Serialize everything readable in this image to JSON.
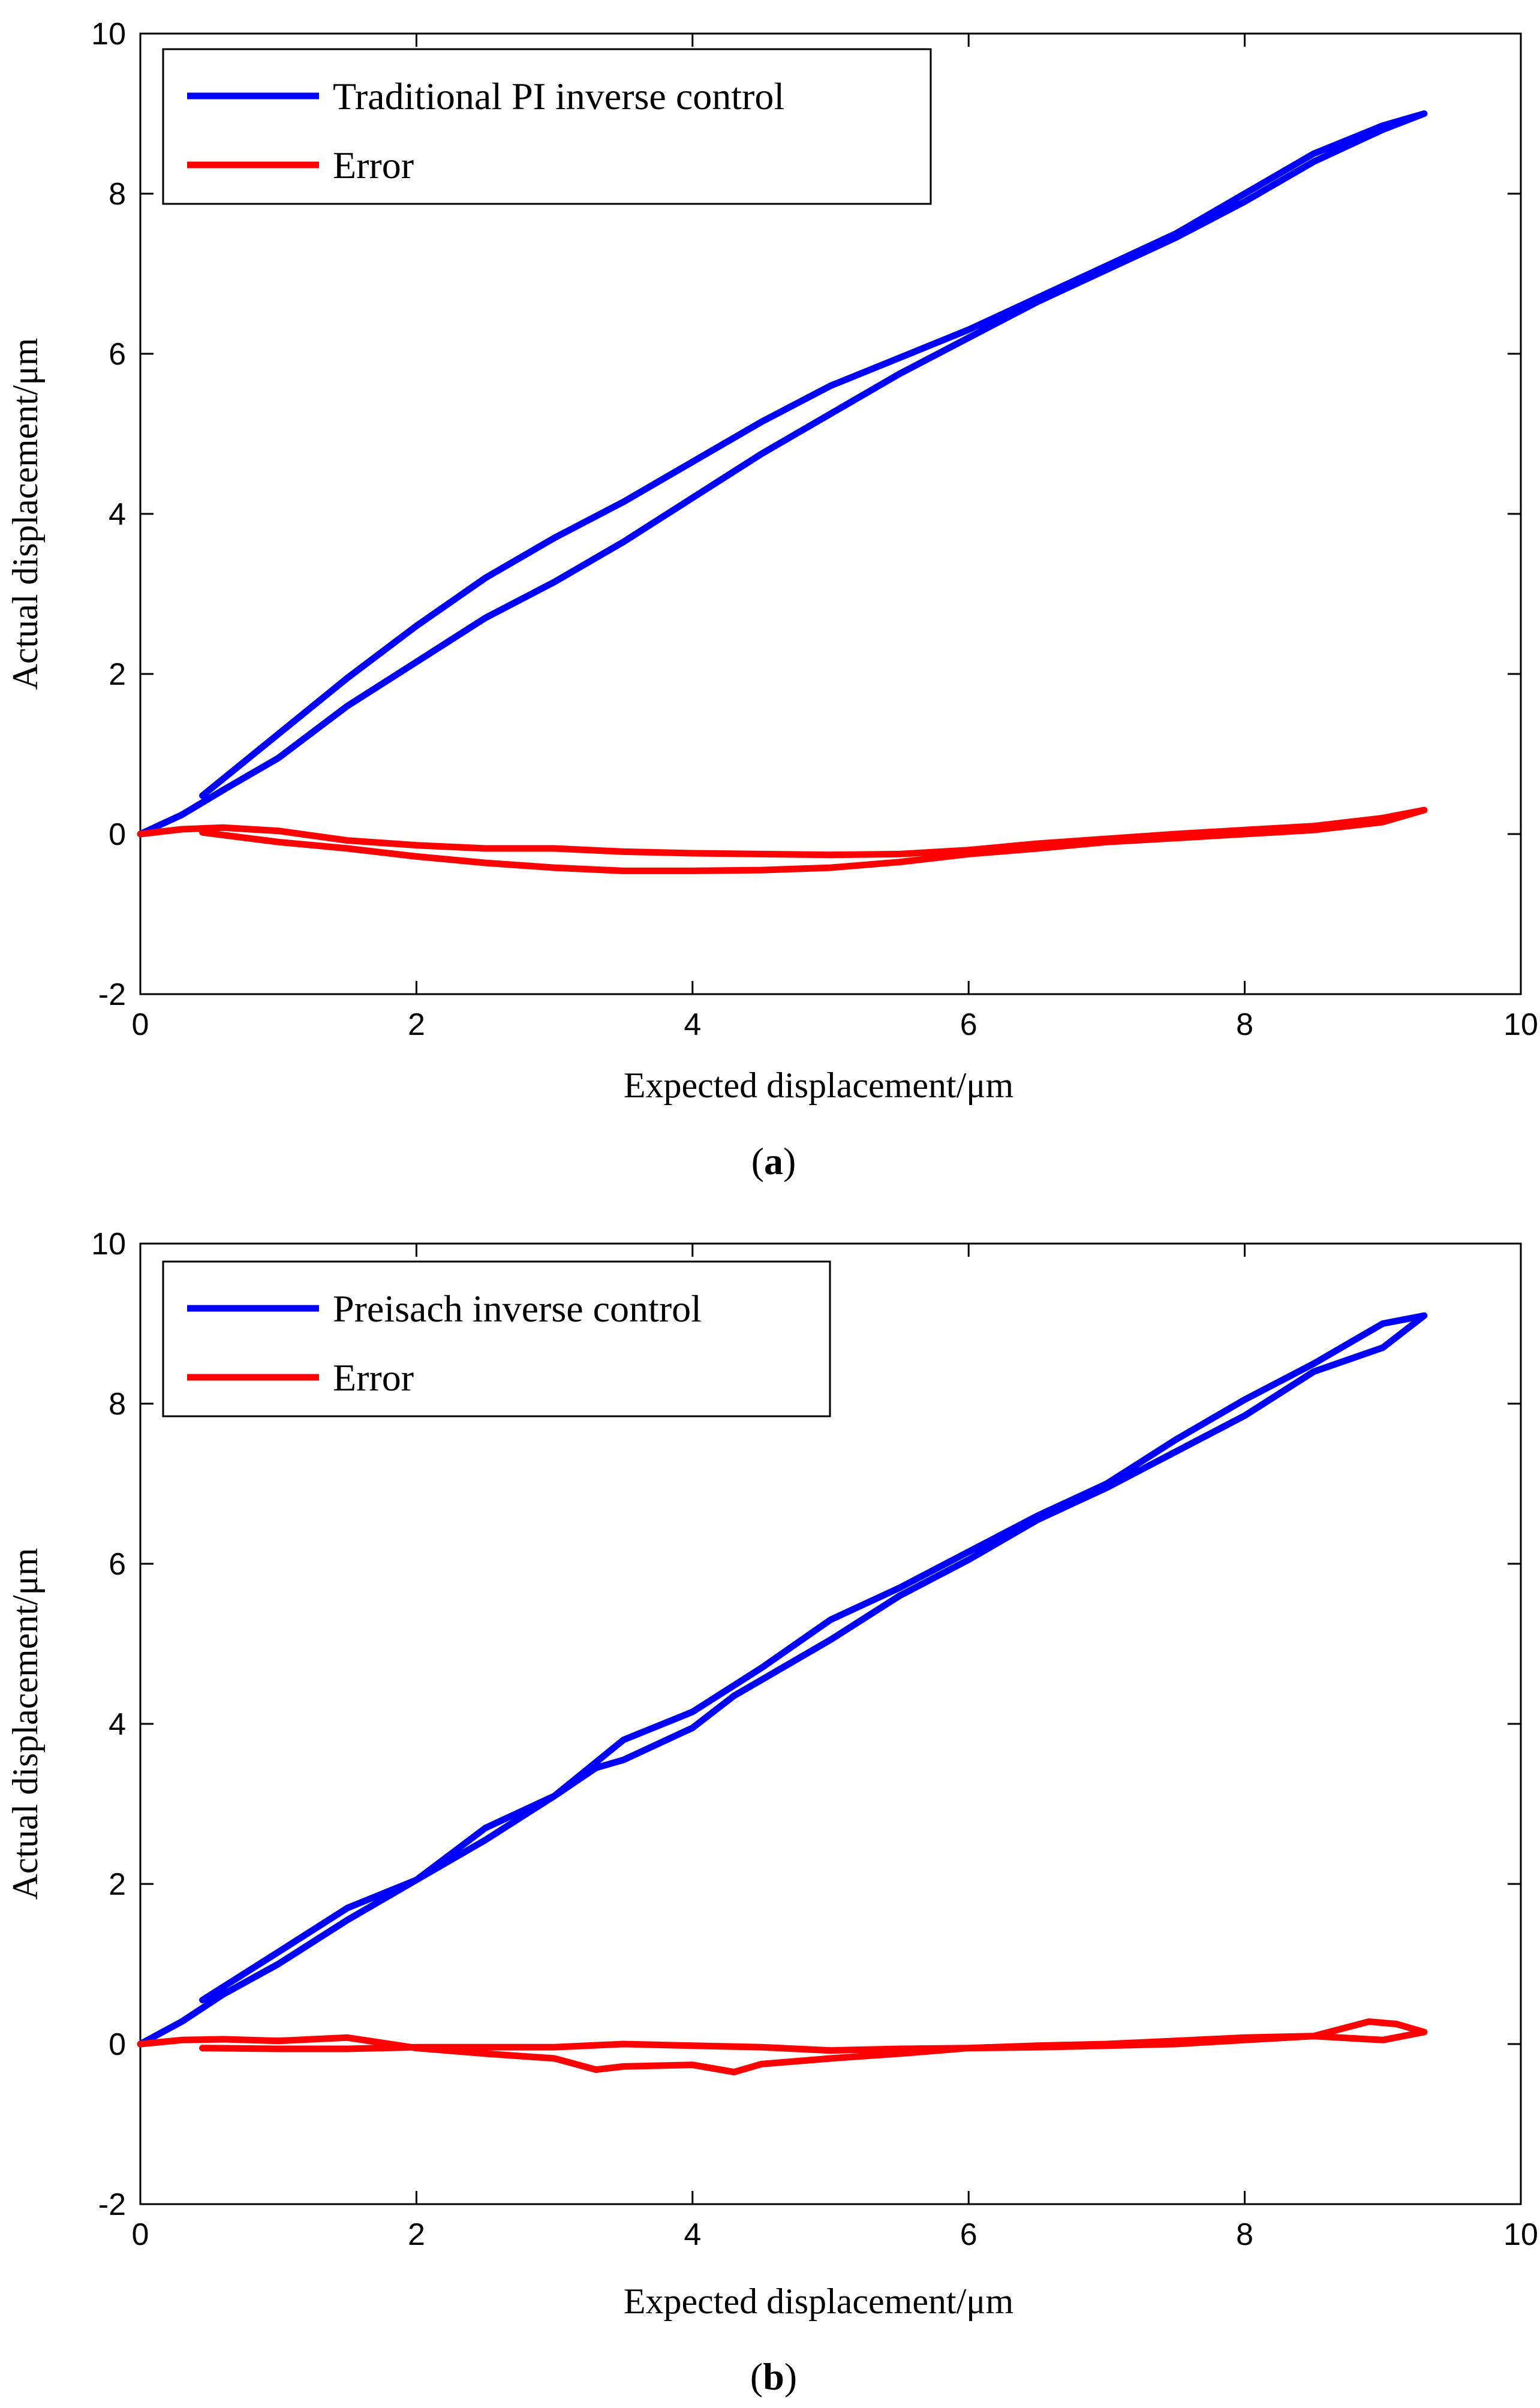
{
  "chart_data": [
    {
      "type": "line",
      "panel_id": "a",
      "caption": "a",
      "xlabel": "Expected displacement/μm",
      "ylabel": "Actual displacement/μm",
      "xlim": [
        0,
        10
      ],
      "ylim": [
        -2,
        10
      ],
      "xticks": [
        0,
        2,
        4,
        6,
        8,
        10
      ],
      "yticks": [
        -2,
        0,
        2,
        4,
        6,
        8,
        10
      ],
      "xtick_labels": [
        "0",
        "2",
        "4",
        "6",
        "8",
        "10"
      ],
      "ytick_labels": [
        "-2",
        "0",
        "2",
        "4",
        "6",
        "8",
        "10"
      ],
      "grid": false,
      "legend_position": "top-left",
      "series": [
        {
          "name": "Traditional PI inverse control",
          "color": "#0000ff",
          "x": [
            0.0,
            0.3,
            0.6,
            1.0,
            1.5,
            2.0,
            2.5,
            3.0,
            3.5,
            4.0,
            4.5,
            5.0,
            5.5,
            6.0,
            6.5,
            7.0,
            7.5,
            8.0,
            8.5,
            9.0,
            9.3,
            9.0,
            8.5,
            8.0,
            7.5,
            7.0,
            6.5,
            6.0,
            5.5,
            5.0,
            4.5,
            4.0,
            3.5,
            3.0,
            2.5,
            2.0,
            1.5,
            1.0,
            0.45
          ],
          "y": [
            0.0,
            0.24,
            0.55,
            0.95,
            1.6,
            2.15,
            2.7,
            3.15,
            3.65,
            4.2,
            4.75,
            5.25,
            5.75,
            6.2,
            6.65,
            7.05,
            7.45,
            7.9,
            8.4,
            8.8,
            9.0,
            8.85,
            8.5,
            8.0,
            7.5,
            7.1,
            6.7,
            6.3,
            5.95,
            5.6,
            5.15,
            4.65,
            4.15,
            3.7,
            3.2,
            2.6,
            1.95,
            1.25,
            0.48
          ]
        },
        {
          "name": "Error",
          "color": "#ff0000",
          "x": [
            0.0,
            0.3,
            0.6,
            1.0,
            1.5,
            2.0,
            2.5,
            3.0,
            3.5,
            4.0,
            4.5,
            5.0,
            5.5,
            6.0,
            6.5,
            7.0,
            7.5,
            8.0,
            8.5,
            9.0,
            9.3,
            9.0,
            8.5,
            8.0,
            7.5,
            7.0,
            6.5,
            6.0,
            5.5,
            5.0,
            4.5,
            4.0,
            3.5,
            3.0,
            2.5,
            2.0,
            1.5,
            1.0,
            0.45
          ],
          "y": [
            0.0,
            0.06,
            0.08,
            0.04,
            -0.08,
            -0.14,
            -0.18,
            -0.18,
            -0.22,
            -0.24,
            -0.25,
            -0.26,
            -0.25,
            -0.2,
            -0.12,
            -0.06,
            0.0,
            0.05,
            0.1,
            0.2,
            0.3,
            0.15,
            0.05,
            0.0,
            -0.05,
            -0.1,
            -0.18,
            -0.25,
            -0.35,
            -0.42,
            -0.45,
            -0.46,
            -0.46,
            -0.42,
            -0.36,
            -0.28,
            -0.18,
            -0.1,
            0.02
          ]
        }
      ]
    },
    {
      "type": "line",
      "panel_id": "b",
      "caption": "b",
      "xlabel": "Expected displacement/μm",
      "ylabel": "Actual displacement/μm",
      "xlim": [
        0,
        10
      ],
      "ylim": [
        -2,
        10
      ],
      "xticks": [
        0,
        2,
        4,
        6,
        8,
        10
      ],
      "yticks": [
        -2,
        0,
        2,
        4,
        6,
        8,
        10
      ],
      "xtick_labels": [
        "0",
        "2",
        "4",
        "6",
        "8",
        "10"
      ],
      "ytick_labels": [
        "-2",
        "0",
        "2",
        "4",
        "6",
        "8",
        "10"
      ],
      "grid": false,
      "legend_position": "top-left",
      "series": [
        {
          "name": "Preisach inverse control",
          "color": "#0000ff",
          "x": [
            0.0,
            0.3,
            0.6,
            1.0,
            1.5,
            2.0,
            2.5,
            3.0,
            3.3,
            3.5,
            4.0,
            4.3,
            4.5,
            5.0,
            5.5,
            6.0,
            6.5,
            7.0,
            7.5,
            8.0,
            8.5,
            9.0,
            9.3,
            9.0,
            8.5,
            8.0,
            7.5,
            7.0,
            6.5,
            6.0,
            5.5,
            5.0,
            4.5,
            4.0,
            3.5,
            3.0,
            2.5,
            2.0,
            1.5,
            1.0,
            0.45
          ],
          "y": [
            0.0,
            0.28,
            0.62,
            1.0,
            1.55,
            2.05,
            2.55,
            3.1,
            3.45,
            3.55,
            3.95,
            4.35,
            4.55,
            5.05,
            5.6,
            6.05,
            6.55,
            6.95,
            7.4,
            7.85,
            8.4,
            8.7,
            9.1,
            9.0,
            8.5,
            8.05,
            7.55,
            7.0,
            6.6,
            6.15,
            5.7,
            5.3,
            4.7,
            4.15,
            3.8,
            3.1,
            2.7,
            2.05,
            1.7,
            1.15,
            0.55
          ]
        },
        {
          "name": "Error",
          "color": "#ff0000",
          "x": [
            0.0,
            0.3,
            0.6,
            1.0,
            1.5,
            2.0,
            2.5,
            3.0,
            3.3,
            3.5,
            4.0,
            4.3,
            4.5,
            5.0,
            5.5,
            6.0,
            6.5,
            7.0,
            7.5,
            8.0,
            8.5,
            8.9,
            9.1,
            9.3,
            9.0,
            8.5,
            8.0,
            7.5,
            7.0,
            6.5,
            6.0,
            5.5,
            5.0,
            4.5,
            4.0,
            3.5,
            3.0,
            2.5,
            2.0,
            1.5,
            1.0,
            0.45
          ],
          "y": [
            0.0,
            0.05,
            0.06,
            0.04,
            0.08,
            -0.05,
            -0.12,
            -0.18,
            -0.32,
            -0.28,
            -0.26,
            -0.35,
            -0.25,
            -0.18,
            -0.12,
            -0.05,
            -0.04,
            -0.02,
            0.0,
            0.05,
            0.1,
            0.28,
            0.25,
            0.15,
            0.05,
            0.1,
            0.08,
            0.04,
            0.0,
            -0.02,
            -0.05,
            -0.06,
            -0.08,
            -0.04,
            -0.02,
            0.0,
            -0.04,
            -0.04,
            -0.04,
            -0.06,
            -0.06,
            -0.05
          ]
        }
      ]
    }
  ]
}
